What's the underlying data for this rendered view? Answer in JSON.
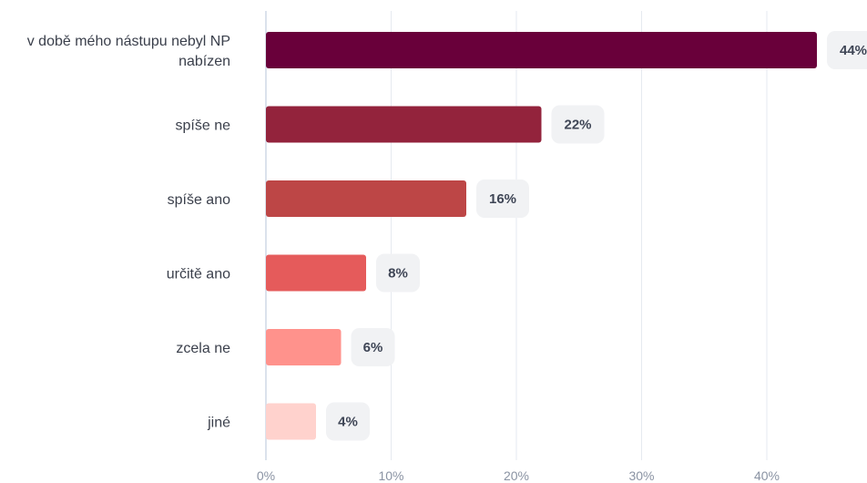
{
  "chart_data": {
    "type": "bar",
    "orientation": "horizontal",
    "categories": [
      [
        "v době mého nástupu nebyl NP",
        "nabízen"
      ],
      [
        "spíše ne"
      ],
      [
        "spíše ano"
      ],
      [
        "určitě ano"
      ],
      [
        "zcela ne"
      ],
      [
        "jiné"
      ]
    ],
    "values": [
      44,
      22,
      16,
      8,
      6,
      4
    ],
    "value_labels": [
      "44%",
      "22%",
      "16%",
      "8%",
      "6%",
      "4%"
    ],
    "bar_colors": [
      "#69003a",
      "#93233c",
      "#bd4646",
      "#e55b5b",
      "#ff928c",
      "#ffd2cd"
    ],
    "x_ticks": [
      0,
      10,
      20,
      30,
      40
    ],
    "x_tick_labels": [
      "0%",
      "10%",
      "20%",
      "30%",
      "40%"
    ],
    "xlim": [
      0,
      48
    ],
    "grid": true,
    "title": "",
    "xlabel": "",
    "ylabel": ""
  }
}
